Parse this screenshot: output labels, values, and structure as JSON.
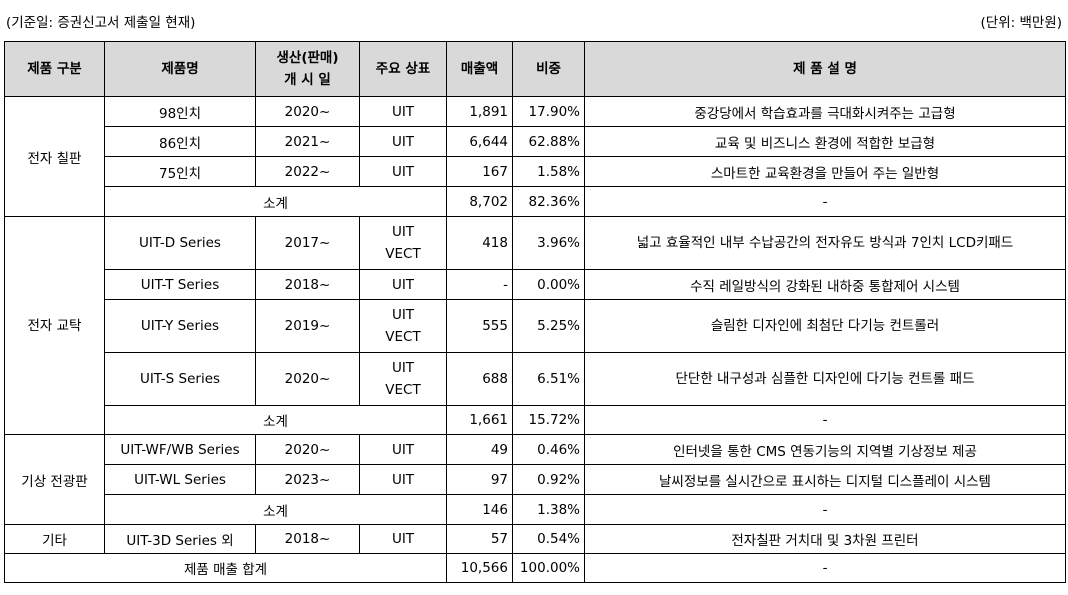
{
  "header": {
    "base_date": "(기준일: 증권신고서 제출일 현재)",
    "unit": "(단위: 백만원)"
  },
  "columns": {
    "category": "제품 구분",
    "product": "제품명",
    "launch_line1": "생산(판매)",
    "launch_line2": "개 시 일",
    "brand": "주요 상표",
    "sales": "매출액",
    "share": "비중",
    "desc": "제 품 설 명"
  },
  "groups": {
    "board": {
      "name": "전자 칠판",
      "rows": [
        {
          "product": "98인치",
          "year": "2020~",
          "brand": "UIT",
          "sales": "1,891",
          "share": "17.90%",
          "desc": "중강당에서 학습효과를 극대화시켜주는 고급형"
        },
        {
          "product": "86인치",
          "year": "2021~",
          "brand": "UIT",
          "sales": "6,644",
          "share": "62.88%",
          "desc": "교육 및 비즈니스 환경에 적합한 보급형"
        },
        {
          "product": "75인치",
          "year": "2022~",
          "brand": "UIT",
          "sales": "167",
          "share": "1.58%",
          "desc": "스마트한 교육환경을 만들어 주는 일반형"
        }
      ],
      "subtotal": {
        "label": "소계",
        "sales": "8,702",
        "share": "82.36%",
        "desc": "-"
      }
    },
    "podium": {
      "name": "전자 교탁",
      "rows": [
        {
          "product": "UIT-D Series",
          "year": "2017~",
          "brand1": "UIT",
          "brand2": "VECT",
          "sales": "418",
          "share": "3.96%",
          "desc": "넓고 효율적인 내부 수납공간의 전자유도 방식과 7인치 LCD키패드"
        },
        {
          "product": "UIT-T Series",
          "year": "2018~",
          "brand1": "UIT",
          "sales": "-",
          "share": "0.00%",
          "desc": "수직 레일방식의 강화된 내하중 통합제어 시스템"
        },
        {
          "product": "UIT-Y Series",
          "year": "2019~",
          "brand1": "UIT",
          "brand2": "VECT",
          "sales": "555",
          "share": "5.25%",
          "desc": "슬림한 디자인에 최첨단 다기능 컨트롤러"
        },
        {
          "product": "UIT-S Series",
          "year": "2020~",
          "brand1": "UIT",
          "brand2": "VECT",
          "sales": "688",
          "share": "6.51%",
          "desc": "단단한 내구성과 심플한 디자인에 다기능 컨트롤 패드"
        }
      ],
      "subtotal": {
        "label": "소계",
        "sales": "1,661",
        "share": "15.72%",
        "desc": "-"
      }
    },
    "weather": {
      "name": "기상 전광판",
      "rows": [
        {
          "product": "UIT-WF/WB Series",
          "year": "2020~",
          "brand": "UIT",
          "sales": "49",
          "share": "0.46%",
          "desc": "인터넷을 통한 CMS 연동기능의 지역별 기상정보 제공"
        },
        {
          "product": "UIT-WL Series",
          "year": "2023~",
          "brand": "UIT",
          "sales": "97",
          "share": "0.92%",
          "desc": "날씨정보를 실시간으로 표시하는 디지털 디스플레이 시스템"
        }
      ],
      "subtotal": {
        "label": "소계",
        "sales": "146",
        "share": "1.38%",
        "desc": "-"
      }
    },
    "etc": {
      "name": "기타",
      "rows": [
        {
          "product": "UIT-3D Series 외",
          "year": "2018~",
          "brand": "UIT",
          "sales": "57",
          "share": "0.54%",
          "desc": "전자칠판 거치대 및 3차원 프린터"
        }
      ]
    }
  },
  "total": {
    "label": "제품 매출 합계",
    "sales": "10,566",
    "share": "100.00%",
    "desc": "-"
  }
}
